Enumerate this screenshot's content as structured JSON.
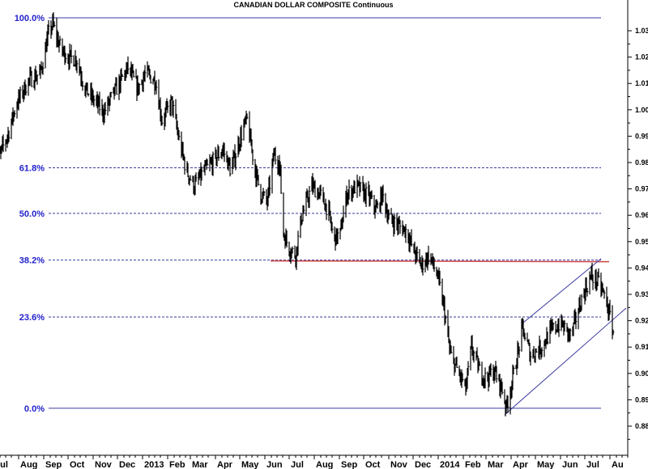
{
  "chart_data": {
    "type": "line",
    "title": "CANADIAN DOLLAR COMPOSITE Continuous",
    "xlabel": "",
    "ylabel": "",
    "ylim": [
      0.873,
      1.041
    ],
    "y_axis_side": "right",
    "y_ticks": [
      "0.88",
      "0.89",
      "0.90",
      "0.91",
      "0.92",
      "0.93",
      "0.94",
      "0.95",
      "0.96",
      "0.97",
      "0.98",
      "0.99",
      "1.00",
      "1.01",
      "1.02",
      "1.03"
    ],
    "x_tick_labels": [
      {
        "label": "Jul",
        "date": "2012-07-01"
      },
      {
        "label": "Aug",
        "date": "2012-08-01"
      },
      {
        "label": "Sep",
        "date": "2012-09-01"
      },
      {
        "label": "Oct",
        "date": "2012-10-01"
      },
      {
        "label": "Nov",
        "date": "2012-11-01"
      },
      {
        "label": "Dec",
        "date": "2012-12-01"
      },
      {
        "label": "2013",
        "date": "2013-01-01"
      },
      {
        "label": "Feb",
        "date": "2013-02-01"
      },
      {
        "label": "Mar",
        "date": "2013-03-01"
      },
      {
        "label": "Apr",
        "date": "2013-04-01"
      },
      {
        "label": "May",
        "date": "2013-05-01"
      },
      {
        "label": "Jun",
        "date": "2013-06-01"
      },
      {
        "label": "Jul",
        "date": "2013-07-01"
      },
      {
        "label": "Aug",
        "date": "2013-08-01"
      },
      {
        "label": "Sep",
        "date": "2013-09-01"
      },
      {
        "label": "Oct",
        "date": "2013-10-01"
      },
      {
        "label": "Nov",
        "date": "2013-11-01"
      },
      {
        "label": "Dec",
        "date": "2013-12-01"
      },
      {
        "label": "2014",
        "date": "2014-01-01"
      },
      {
        "label": "Feb",
        "date": "2014-02-01"
      },
      {
        "label": "Mar",
        "date": "2014-03-01"
      },
      {
        "label": "Apr",
        "date": "2014-04-01"
      },
      {
        "label": "May",
        "date": "2014-05-01"
      },
      {
        "label": "Jun",
        "date": "2014-06-01"
      },
      {
        "label": "Jul",
        "date": "2014-07-01"
      },
      {
        "label": "Au",
        "date": "2014-08-01"
      }
    ],
    "grid": false,
    "price_color": "#000000",
    "series": [
      {
        "points": [
          [
            "2012-07-09",
            0.983
          ],
          [
            "2012-07-19",
            0.991
          ],
          [
            "2012-07-29",
            1.002
          ],
          [
            "2012-08-13",
            1.011
          ],
          [
            "2012-08-28",
            1.014
          ],
          [
            "2012-09-07",
            1.029
          ],
          [
            "2012-09-12",
            1.0325
          ],
          [
            "2012-09-22",
            1.023
          ],
          [
            "2012-10-02",
            1.02
          ],
          [
            "2012-10-12",
            1.019
          ],
          [
            "2012-10-22",
            1.008
          ],
          [
            "2012-11-04",
            1.003
          ],
          [
            "2012-11-14",
            0.999
          ],
          [
            "2012-11-26",
            1.006
          ],
          [
            "2012-12-14",
            1.016
          ],
          [
            "2012-12-26",
            1.008
          ],
          [
            "2013-01-05",
            1.014
          ],
          [
            "2013-01-17",
            1.011
          ],
          [
            "2013-01-25",
            0.996
          ],
          [
            "2013-02-06",
            1.003
          ],
          [
            "2013-02-14",
            0.99
          ],
          [
            "2013-02-24",
            0.977
          ],
          [
            "2013-03-06",
            0.971
          ],
          [
            "2013-03-16",
            0.976
          ],
          [
            "2013-03-28",
            0.98
          ],
          [
            "2013-04-10",
            0.985
          ],
          [
            "2013-04-20",
            0.977
          ],
          [
            "2013-05-05",
            0.993
          ],
          [
            "2013-05-10",
            0.996
          ],
          [
            "2013-05-20",
            0.977
          ],
          [
            "2013-05-27",
            0.968
          ],
          [
            "2013-06-04",
            0.965
          ],
          [
            "2013-06-12",
            0.983
          ],
          [
            "2013-06-19",
            0.98
          ],
          [
            "2013-06-24",
            0.953
          ],
          [
            "2013-07-02",
            0.947
          ],
          [
            "2013-07-09",
            0.945
          ],
          [
            "2013-07-16",
            0.959
          ],
          [
            "2013-07-29",
            0.971
          ],
          [
            "2013-08-08",
            0.968
          ],
          [
            "2013-08-18",
            0.962
          ],
          [
            "2013-08-25",
            0.951
          ],
          [
            "2013-09-02",
            0.953
          ],
          [
            "2013-09-10",
            0.968
          ],
          [
            "2013-09-22",
            0.971
          ],
          [
            "2013-10-07",
            0.967
          ],
          [
            "2013-10-17",
            0.962
          ],
          [
            "2013-10-24",
            0.968
          ],
          [
            "2013-11-01",
            0.959
          ],
          [
            "2013-11-13",
            0.956
          ],
          [
            "2013-11-23",
            0.954
          ],
          [
            "2013-12-01",
            0.947
          ],
          [
            "2013-12-11",
            0.941
          ],
          [
            "2013-12-21",
            0.945
          ],
          [
            "2013-12-31",
            0.937
          ],
          [
            "2014-01-08",
            0.925
          ],
          [
            "2014-01-16",
            0.907
          ],
          [
            "2014-01-25",
            0.901
          ],
          [
            "2014-02-04",
            0.894
          ],
          [
            "2014-02-11",
            0.91
          ],
          [
            "2014-02-21",
            0.901
          ],
          [
            "2014-03-01",
            0.898
          ],
          [
            "2014-03-11",
            0.901
          ],
          [
            "2014-03-21",
            0.894
          ],
          [
            "2014-03-26",
            0.887
          ],
          [
            "2014-04-05",
            0.901
          ],
          [
            "2014-04-15",
            0.917
          ],
          [
            "2014-04-25",
            0.907
          ],
          [
            "2014-05-08",
            0.91
          ],
          [
            "2014-05-20",
            0.916
          ],
          [
            "2014-06-01",
            0.919
          ],
          [
            "2014-06-14",
            0.914
          ],
          [
            "2014-06-21",
            0.922
          ],
          [
            "2014-06-29",
            0.93
          ],
          [
            "2014-07-09",
            0.937
          ],
          [
            "2014-07-19",
            0.934
          ],
          [
            "2014-07-27",
            0.928
          ],
          [
            "2014-08-05",
            0.916
          ]
        ]
      }
    ],
    "fibonacci": {
      "color": "#3a3aa0",
      "levels": [
        {
          "label": "100.0%",
          "value": 1.0349,
          "style": "solid"
        },
        {
          "label": "61.8%",
          "value": 0.978,
          "style": "dashed"
        },
        {
          "label": "50.0%",
          "value": 0.9607,
          "style": "dashed"
        },
        {
          "label": "38.2%",
          "value": 0.943,
          "style": "dashed"
        },
        {
          "label": "23.6%",
          "value": 0.9214,
          "style": "dashed"
        },
        {
          "label": "0.0%",
          "value": 0.8868,
          "style": "solid"
        }
      ]
    },
    "annotations": {
      "support_line": {
        "color": "#cc4444",
        "value": 0.9427,
        "from": "2013-06-08",
        "to": "2014-07-31"
      },
      "channel_upper": {
        "color": "#3a3aa0",
        "from": [
          "2014-04-15",
          0.919
        ],
        "to": [
          "2014-07-21",
          0.9435
        ]
      },
      "channel_lower": {
        "color": "#3a3aa0",
        "from": [
          "2014-03-24",
          0.8843
        ],
        "to": [
          "2014-08-21",
          0.9248
        ]
      }
    }
  }
}
